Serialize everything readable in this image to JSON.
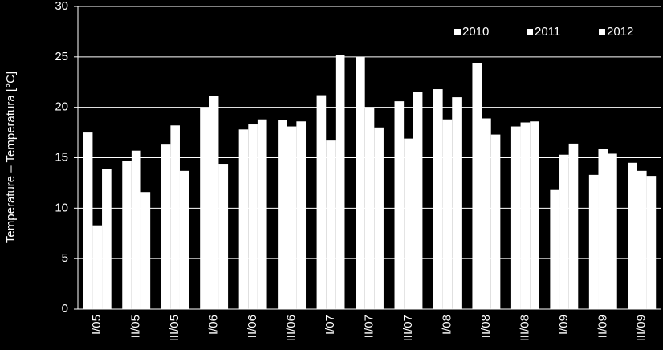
{
  "chart_data": {
    "type": "bar",
    "y_label": "Temperature – Temperatura  [°C]",
    "categories": [
      "I/05",
      "II/05",
      "III/05",
      "I/06",
      "II/06",
      "III/06",
      "I/07",
      "II/07",
      "III/07",
      "I/08",
      "II/08",
      "III/08",
      "I/09",
      "II/09",
      "III/09"
    ],
    "series": [
      {
        "name": "2010",
        "color": "#ffffff",
        "values": [
          17.5,
          14.7,
          16.3,
          19.9,
          17.8,
          18.7,
          21.2,
          25.0,
          20.6,
          21.8,
          24.4,
          18.1,
          11.8,
          13.3,
          14.5
        ]
      },
      {
        "name": "2011",
        "color": "#ffffff",
        "values": [
          8.3,
          15.7,
          18.2,
          21.1,
          18.3,
          18.1,
          16.7,
          19.9,
          16.9,
          18.8,
          18.9,
          18.5,
          15.3,
          15.9,
          13.7
        ]
      },
      {
        "name": "2012",
        "color": "#ffffff",
        "values": [
          13.9,
          11.6,
          13.7,
          14.4,
          18.8,
          18.6,
          25.2,
          18.0,
          21.5,
          21.0,
          17.3,
          18.6,
          16.4,
          15.4,
          13.2
        ]
      }
    ],
    "ylim": [
      0,
      30
    ],
    "yticks": [
      0,
      5,
      10,
      15,
      20,
      25,
      30
    ],
    "grid": true,
    "legend": "top-right"
  }
}
